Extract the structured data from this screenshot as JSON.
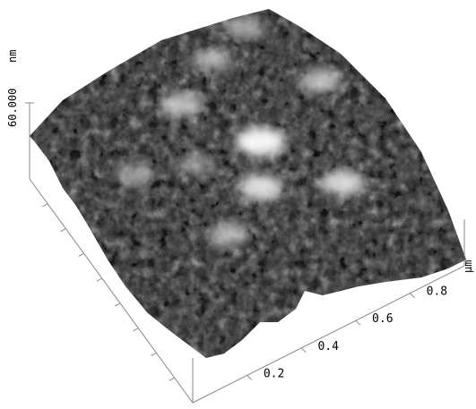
{
  "chart_data": {
    "type": "heatmap",
    "title": "",
    "z_axis": {
      "value_label": "60.000",
      "unit_label": "nm",
      "range": [
        0,
        60
      ]
    },
    "x_axis": {
      "unit_label": "µm",
      "range": [
        0,
        1.0
      ]
    },
    "y_axis": {
      "tick_values": [
        0.2,
        0.4,
        0.6,
        0.8
      ],
      "tick_labels": [
        "0.2",
        "0.4",
        "0.6",
        "0.8"
      ],
      "range": [
        0,
        1.0
      ]
    },
    "colormap": "grayscale",
    "colors": {
      "low": "#000000",
      "high": "#ffffff",
      "axis": "#888888",
      "text": "#000000"
    },
    "surface": {
      "grain_texture": "granular",
      "height_peaks": [
        {
          "x": 0.52,
          "y": 0.45,
          "height": 60
        },
        {
          "x": 0.43,
          "y": 0.3,
          "height": 52
        },
        {
          "x": 0.66,
          "y": 0.18,
          "height": 50
        },
        {
          "x": 0.38,
          "y": 0.7,
          "height": 44
        },
        {
          "x": 0.25,
          "y": 0.2,
          "height": 40
        },
        {
          "x": 0.8,
          "y": 0.55,
          "height": 42
        },
        {
          "x": 0.55,
          "y": 0.8,
          "height": 38
        },
        {
          "x": 0.12,
          "y": 0.55,
          "height": 34
        },
        {
          "x": 0.7,
          "y": 0.85,
          "height": 36
        },
        {
          "x": 0.3,
          "y": 0.48,
          "height": 30
        }
      ]
    }
  }
}
